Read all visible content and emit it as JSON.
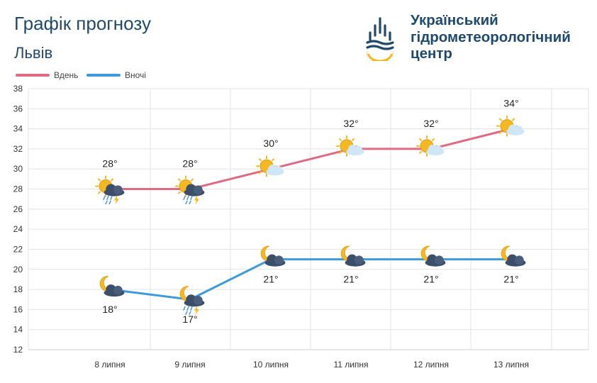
{
  "header": {
    "title": "Графік прогнозу",
    "city": "Львів",
    "org_lines": [
      "Український",
      "гідрометеорологічний",
      "центр"
    ]
  },
  "legend": {
    "day_label": "Вдень",
    "night_label": "Вночі"
  },
  "colors": {
    "day": "#e06a84",
    "night": "#3e9ad8",
    "grid": "#e3e3e3",
    "text": "#1f4a6e",
    "logo_blue": "#1f4a6e",
    "logo_yellow": "#f6b820"
  },
  "chart_data": {
    "type": "line",
    "categories": [
      "8 липня",
      "9 липня",
      "10 липня",
      "11 липня",
      "12 липня",
      "13 липня"
    ],
    "ylim": [
      12,
      38
    ],
    "yticks": [
      12,
      14,
      16,
      18,
      20,
      22,
      24,
      26,
      28,
      30,
      32,
      34,
      36,
      38
    ],
    "grid": true,
    "legend_position": "top-left",
    "series": [
      {
        "name": "Вдень",
        "values": [
          28,
          28,
          30,
          32,
          32,
          34
        ],
        "labels": [
          "28°",
          "28°",
          "30°",
          "32°",
          "32°",
          "34°"
        ],
        "icons": [
          "sun-cloud-rain-thunder-icon",
          "sun-cloud-rain-thunder-icon",
          "sun-cloud-icon",
          "sun-cloud-icon",
          "sun-cloud-icon",
          "sun-cloud-icon"
        ]
      },
      {
        "name": "Вночі",
        "values": [
          18,
          17,
          21,
          21,
          21,
          21
        ],
        "labels": [
          "18°",
          "17°",
          "21°",
          "21°",
          "21°",
          "21°"
        ],
        "icons": [
          "moon-cloud-icon",
          "moon-cloud-rain-thunder-icon",
          "moon-cloud-icon",
          "moon-cloud-icon",
          "moon-cloud-icon",
          "moon-cloud-icon"
        ]
      }
    ]
  }
}
